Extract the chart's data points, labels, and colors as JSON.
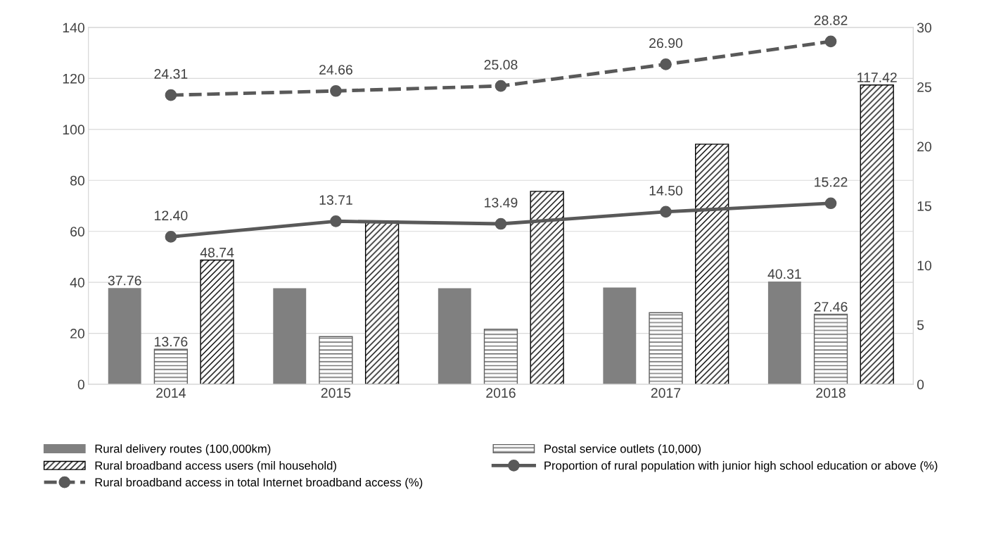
{
  "chart_data": {
    "type": "bar",
    "categories": [
      "2014",
      "2015",
      "2016",
      "2017",
      "2018"
    ],
    "ylim": [
      0,
      140
    ],
    "yticks": [
      0,
      20,
      40,
      60,
      80,
      100,
      120,
      140
    ],
    "y2lim": [
      0,
      30
    ],
    "y2ticks": [
      0,
      5,
      10,
      15,
      20,
      25,
      30
    ],
    "grid": "y",
    "legend": "bottom",
    "series": [
      {
        "name": "Rural delivery routes (100,000km)",
        "color": "#808080",
        "values": [
          37.76,
          37.7,
          37.7,
          38.0,
          40.31
        ],
        "value_labels": [
          "37.76",
          null,
          null,
          null,
          "40.31"
        ]
      },
      {
        "name": "Postal service outlets (10,000)",
        "color": "#606060",
        "values": [
          13.76,
          18.7,
          21.6,
          28.1,
          27.46
        ],
        "value_labels": [
          "13.76",
          null,
          null,
          null,
          "27.46"
        ]
      },
      {
        "name": "Rural broadband access users (mil household)",
        "color": "#000000",
        "values": [
          48.74,
          64.0,
          75.7,
          94.2,
          117.42
        ],
        "value_labels": [
          "48.74",
          null,
          null,
          null,
          "117.42"
        ]
      },
      {
        "name": "Proportion of rural population with junior high school education or above (%)",
        "type": "line",
        "axis": "y2",
        "color": "#595959",
        "marker": "circle",
        "line_style": "solid",
        "values": [
          12.4,
          13.71,
          13.49,
          14.5,
          15.22
        ],
        "value_labels": [
          "12.40",
          "13.71",
          "13.49",
          "14.50",
          "15.22"
        ]
      },
      {
        "name": "Rural broadband access in total Internet broadband access (%)",
        "type": "line",
        "axis": "y2",
        "color": "#595959",
        "marker": "circle",
        "line_style": "dashed",
        "values": [
          24.31,
          24.66,
          25.08,
          26.9,
          28.82
        ],
        "value_labels": [
          "24.31",
          "24.66",
          "25.08",
          "26.90",
          "28.82"
        ]
      }
    ]
  }
}
